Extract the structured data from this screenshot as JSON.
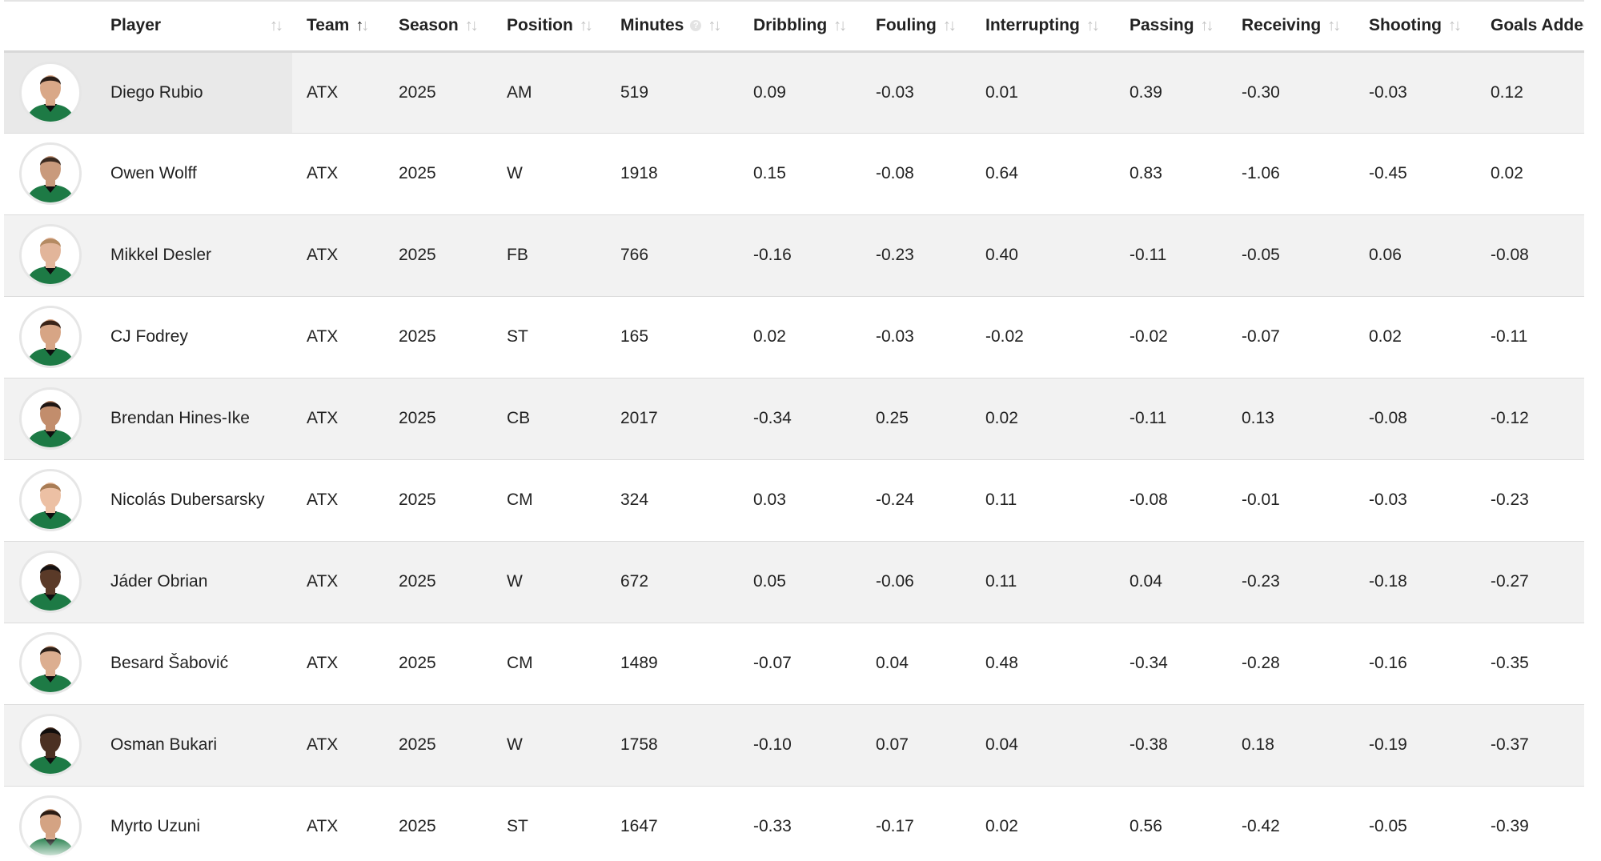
{
  "table": {
    "columns": [
      {
        "key": "player",
        "label": "Player",
        "sort": "none",
        "help": false
      },
      {
        "key": "team",
        "label": "Team",
        "sort": "asc",
        "help": false
      },
      {
        "key": "season",
        "label": "Season",
        "sort": "none",
        "help": false
      },
      {
        "key": "position",
        "label": "Position",
        "sort": "none",
        "help": false
      },
      {
        "key": "minutes",
        "label": "Minutes",
        "sort": "none",
        "help": true
      },
      {
        "key": "dribbling",
        "label": "Dribbling",
        "sort": "none",
        "help": false
      },
      {
        "key": "fouling",
        "label": "Fouling",
        "sort": "none",
        "help": false
      },
      {
        "key": "interrupting",
        "label": "Interrupting",
        "sort": "none",
        "help": false
      },
      {
        "key": "passing",
        "label": "Passing",
        "sort": "none",
        "help": false
      },
      {
        "key": "receiving",
        "label": "Receiving",
        "sort": "none",
        "help": false
      },
      {
        "key": "shooting",
        "label": "Shooting",
        "sort": "none",
        "help": false
      },
      {
        "key": "goals_added",
        "label": "Goals Added",
        "sort": "none",
        "help": false
      }
    ],
    "rows": [
      {
        "player": "Diego Rubio",
        "team": "ATX",
        "season": "2025",
        "position": "AM",
        "minutes": "519",
        "dribbling": "0.09",
        "fouling": "-0.03",
        "interrupting": "0.01",
        "passing": "0.39",
        "receiving": "-0.30",
        "shooting": "-0.03",
        "goals_added": "0.12",
        "skin": "#d9a888",
        "hair": "#2a1d17"
      },
      {
        "player": "Owen Wolff",
        "team": "ATX",
        "season": "2025",
        "position": "W",
        "minutes": "1918",
        "dribbling": "0.15",
        "fouling": "-0.08",
        "interrupting": "0.64",
        "passing": "0.83",
        "receiving": "-1.06",
        "shooting": "-0.45",
        "goals_added": "0.02",
        "skin": "#c99a7c",
        "hair": "#3b2a20"
      },
      {
        "player": "Mikkel Desler",
        "team": "ATX",
        "season": "2025",
        "position": "FB",
        "minutes": "766",
        "dribbling": "-0.16",
        "fouling": "-0.23",
        "interrupting": "0.40",
        "passing": "-0.11",
        "receiving": "-0.05",
        "shooting": "0.06",
        "goals_added": "-0.08",
        "skin": "#e2b59a",
        "hair": "#b48a62"
      },
      {
        "player": "CJ Fodrey",
        "team": "ATX",
        "season": "2025",
        "position": "ST",
        "minutes": "165",
        "dribbling": "0.02",
        "fouling": "-0.03",
        "interrupting": "-0.02",
        "passing": "-0.02",
        "receiving": "-0.07",
        "shooting": "0.02",
        "goals_added": "-0.11",
        "skin": "#d7a585",
        "hair": "#3a2418"
      },
      {
        "player": "Brendan Hines-Ike",
        "team": "ATX",
        "season": "2025",
        "position": "CB",
        "minutes": "2017",
        "dribbling": "-0.34",
        "fouling": "0.25",
        "interrupting": "0.02",
        "passing": "-0.11",
        "receiving": "0.13",
        "shooting": "-0.08",
        "goals_added": "-0.12",
        "skin": "#c28d6c",
        "hair": "#1f1613"
      },
      {
        "player": "Nicolás Dubersarsky",
        "team": "ATX",
        "season": "2025",
        "position": "CM",
        "minutes": "324",
        "dribbling": "0.03",
        "fouling": "-0.24",
        "interrupting": "0.11",
        "passing": "-0.08",
        "receiving": "-0.01",
        "shooting": "-0.03",
        "goals_added": "-0.23",
        "skin": "#ecc0a4",
        "hair": "#a87c55"
      },
      {
        "player": "Jáder Obrian",
        "team": "ATX",
        "season": "2025",
        "position": "W",
        "minutes": "672",
        "dribbling": "0.05",
        "fouling": "-0.06",
        "interrupting": "0.11",
        "passing": "0.04",
        "receiving": "-0.23",
        "shooting": "-0.18",
        "goals_added": "-0.27",
        "skin": "#5a3a28",
        "hair": "#141010"
      },
      {
        "player": "Besard Šabović",
        "team": "ATX",
        "season": "2025",
        "position": "CM",
        "minutes": "1489",
        "dribbling": "-0.07",
        "fouling": "0.04",
        "interrupting": "0.48",
        "passing": "-0.34",
        "receiving": "-0.28",
        "shooting": "-0.16",
        "goals_added": "-0.35",
        "skin": "#dcae90",
        "hair": "#2c1f18"
      },
      {
        "player": "Osman Bukari",
        "team": "ATX",
        "season": "2025",
        "position": "W",
        "minutes": "1758",
        "dribbling": "-0.10",
        "fouling": "0.07",
        "interrupting": "0.04",
        "passing": "-0.38",
        "receiving": "0.18",
        "shooting": "-0.19",
        "goals_added": "-0.37",
        "skin": "#4b3022",
        "hair": "#120e0c"
      },
      {
        "player": "Myrto Uzuni",
        "team": "ATX",
        "season": "2025",
        "position": "ST",
        "minutes": "1647",
        "dribbling": "-0.33",
        "fouling": "-0.17",
        "interrupting": "0.02",
        "passing": "0.56",
        "receiving": "-0.42",
        "shooting": "-0.05",
        "goals_added": "-0.39",
        "skin": "#d4a383",
        "hair": "#2b1c14"
      }
    ]
  },
  "colors": {
    "jersey": "#1d7a45",
    "jersey_trim": "#0f0f0f",
    "row_alt": "#f2f2f2",
    "hovered_player_cell": "#e9e9e9"
  },
  "icons": {
    "sort": "sort-arrows-icon",
    "help": "help-circle-icon",
    "avatar": "player-photo"
  }
}
